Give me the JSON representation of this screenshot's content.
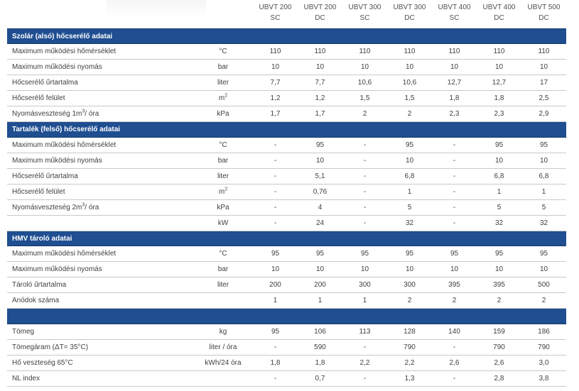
{
  "columns": [
    {
      "model": "UBVT 200",
      "type": "SC"
    },
    {
      "model": "UBVT 200",
      "type": "DC"
    },
    {
      "model": "UBVT 300",
      "type": "SC"
    },
    {
      "model": "UBVT 300",
      "type": "DC"
    },
    {
      "model": "UBVT 400",
      "type": "SC"
    },
    {
      "model": "UBVT 400",
      "type": "DC"
    },
    {
      "model": "UBVT 500",
      "type": "DC"
    }
  ],
  "sections": [
    {
      "title": "Szolár (alsó) hőcserélő adatai",
      "rows": [
        {
          "label": "Maximum működési hőmérséklet",
          "unit": "°C",
          "values": [
            "110",
            "110",
            "110",
            "110",
            "110",
            "110",
            "110"
          ]
        },
        {
          "label": "Maximum működési nyomás",
          "unit": "bar",
          "values": [
            "10",
            "10",
            "10",
            "10",
            "10",
            "10",
            "10"
          ]
        },
        {
          "label": "Hőcserélő űrtartalma",
          "unit": "liter",
          "values": [
            "7,7",
            "7,7",
            "10,6",
            "10,6",
            "12,7",
            "12,7",
            "17"
          ]
        },
        {
          "label": "Hőcserélő felület",
          "unit": "m",
          "unit_sup": "2",
          "values": [
            "1,2",
            "1,2",
            "1,5",
            "1,5",
            "1,8",
            "1,8",
            "2,5"
          ]
        },
        {
          "label": "Nyomásveszteség 1m",
          "label_sup": "3",
          "label_tail": "/ óra",
          "unit": "kPa",
          "values": [
            "1,7",
            "1,7",
            "2",
            "2",
            "2,3",
            "2,3",
            "2,9"
          ]
        }
      ]
    },
    {
      "title": "Tartalék (felső) hőcserélő adatai",
      "rows": [
        {
          "label": "Maximum működési hőmérséklet",
          "unit": "°C",
          "values": [
            "-",
            "95",
            "-",
            "95",
            "-",
            "95",
            "95"
          ]
        },
        {
          "label": "Maximum működési nyomás",
          "unit": "bar",
          "values": [
            "-",
            "10",
            "-",
            "10",
            "-",
            "10",
            "10"
          ]
        },
        {
          "label": "Hőcserélő űrtartalma",
          "unit": "liter",
          "values": [
            "-",
            "5,1",
            "-",
            "6,8",
            "-",
            "6,8",
            "6,8"
          ]
        },
        {
          "label": "Hőcserélő felület",
          "unit": "m",
          "unit_sup": "2",
          "values": [
            "-",
            "0,76",
            "-",
            "1",
            "-",
            "1",
            "1"
          ]
        },
        {
          "label": "Nyomásveszteség 2m",
          "label_sup": "3",
          "label_tail": "/ óra",
          "unit": "kPa",
          "values": [
            "-",
            "4",
            "-",
            "5",
            "-",
            "5",
            "5"
          ]
        },
        {
          "label": "",
          "unit": "kW",
          "values": [
            "-",
            "24",
            "-",
            "32",
            "-",
            "32",
            "32"
          ]
        }
      ]
    },
    {
      "title": "HMV tároló adatai",
      "rows": [
        {
          "label": "Maximum működési hőmérséklet",
          "unit": "°C",
          "values": [
            "95",
            "95",
            "95",
            "95",
            "95",
            "95",
            "95"
          ]
        },
        {
          "label": "Maximum működési nyomás",
          "unit": "bar",
          "values": [
            "10",
            "10",
            "10",
            "10",
            "10",
            "10",
            "10"
          ]
        },
        {
          "label": "Tároló űrtartalma",
          "unit": "liter",
          "values": [
            "200",
            "200",
            "300",
            "300",
            "395",
            "395",
            "500"
          ]
        },
        {
          "label": "Anódok száma",
          "unit": "",
          "values": [
            "1",
            "1",
            "1",
            "2",
            "2",
            "2",
            "2"
          ]
        }
      ]
    },
    {
      "title": "",
      "rows": [
        {
          "label": "Tömeg",
          "unit": "kg",
          "values": [
            "95",
            "106",
            "113",
            "128",
            "140",
            "159",
            "186"
          ]
        },
        {
          "label": "Tömegáram (ΔT= 35°C)",
          "unit": "liter / óra",
          "values": [
            "-",
            "590",
            "-",
            "790",
            "-",
            "790",
            "790"
          ]
        },
        {
          "label": "Hő veszteség 65°C",
          "unit": "kWh/24 óra",
          "values": [
            "1,8",
            "1,8",
            "2,2",
            "2,2",
            "2,6",
            "2,6",
            "3,0"
          ]
        },
        {
          "label": "NL index",
          "unit": "",
          "values": [
            "-",
            "0,7",
            "-",
            "1,3",
            "-",
            "2,8",
            "3,8"
          ]
        }
      ]
    }
  ]
}
